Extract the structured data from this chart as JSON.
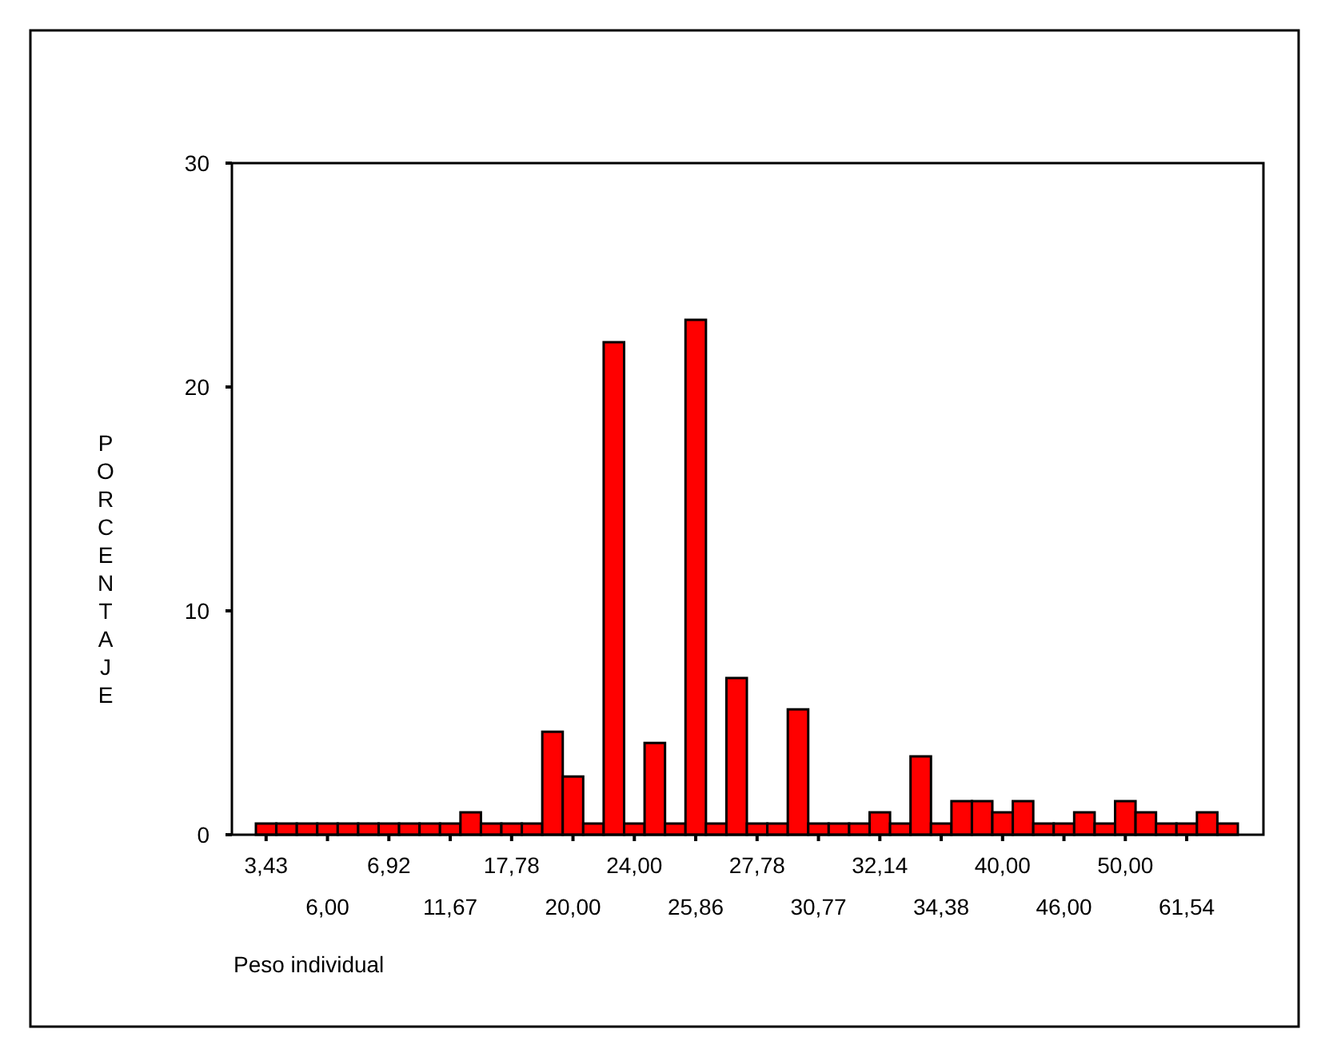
{
  "chart_data": {
    "type": "bar",
    "xlabel": "Peso individual",
    "ylabel": "PORCENTAJE",
    "categories": [
      "3,43",
      null,
      null,
      "6,00",
      null,
      null,
      "6,92",
      null,
      null,
      "11,67",
      null,
      null,
      "17,78",
      null,
      null,
      "20,00",
      null,
      null,
      "24,00",
      null,
      null,
      "25,86",
      null,
      null,
      "27,78",
      null,
      null,
      "30,77",
      null,
      null,
      "32,14",
      null,
      null,
      "34,38",
      null,
      null,
      "40,00",
      null,
      null,
      "46,00",
      null,
      null,
      "50,00",
      null,
      null,
      "61,54",
      null,
      null
    ],
    "values": [
      0.5,
      0.5,
      0.5,
      0.5,
      0.5,
      0.5,
      0.5,
      0.5,
      0.5,
      0.5,
      1.0,
      0.5,
      0.5,
      0.5,
      4.6,
      2.6,
      0.5,
      22,
      0.5,
      4.1,
      0.5,
      23,
      0.5,
      7.0,
      0.5,
      0.5,
      5.6,
      0.5,
      0.5,
      0.5,
      1.0,
      0.5,
      3.5,
      0.5,
      1.5,
      1.5,
      1.0,
      1.5,
      0.5,
      0.5,
      1.0,
      0.5,
      1.5,
      1.0,
      0.5,
      0.5,
      1.0,
      0.5
    ],
    "color": "#ff0000",
    "ylim": [
      0,
      30
    ],
    "yticks": [
      0,
      10,
      20,
      30
    ],
    "grid": false
  }
}
